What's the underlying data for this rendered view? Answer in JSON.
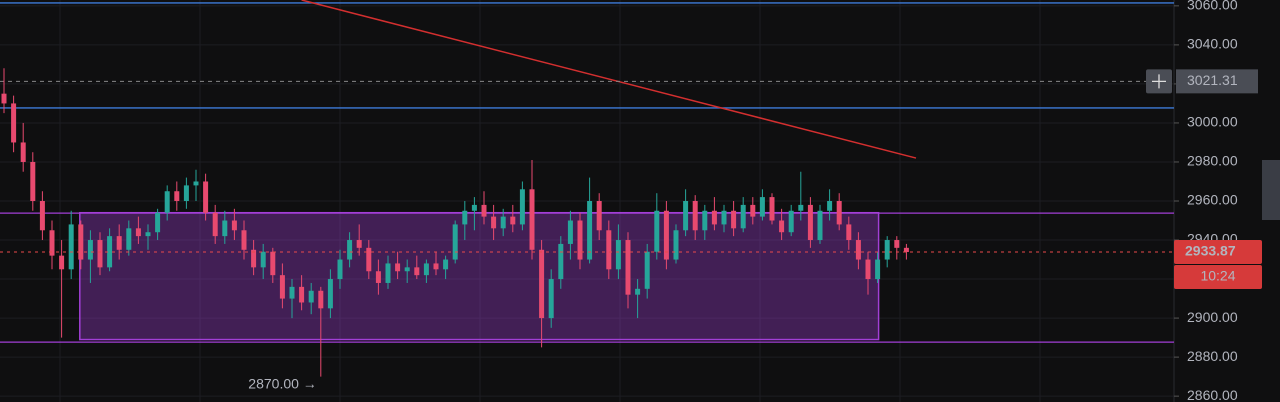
{
  "chart_data": {
    "type": "candlestick",
    "ylim": [
      2857,
      3063
    ],
    "yticks": [
      {
        "value": 3060,
        "label": "3060.00"
      },
      {
        "value": 3040,
        "label": "3040.00"
      },
      {
        "value": 3020,
        "label": "3020.00"
      },
      {
        "value": 3000,
        "label": "3000.00"
      },
      {
        "value": 2980,
        "label": "2980.00"
      },
      {
        "value": 2960,
        "label": "2960.00"
      },
      {
        "value": 2940,
        "label": "2940.00"
      },
      {
        "value": 2920,
        "label": "2920.00"
      },
      {
        "value": 2900,
        "label": "2900.00"
      },
      {
        "value": 2880,
        "label": "2880.00"
      },
      {
        "value": 2860,
        "label": "2860.00"
      }
    ],
    "grid": true,
    "up_color": "#26a69a",
    "down_color": "#e84a6f",
    "candles": [
      [
        3015,
        3028,
        3005,
        3010
      ],
      [
        3010,
        3014,
        2985,
        2990
      ],
      [
        2990,
        3000,
        2975,
        2980
      ],
      [
        2980,
        2985,
        2955,
        2960
      ],
      [
        2960,
        2965,
        2940,
        2945
      ],
      [
        2945,
        2950,
        2925,
        2932
      ],
      [
        2932,
        2940,
        2890,
        2925
      ],
      [
        2925,
        2955,
        2920,
        2948
      ],
      [
        2948,
        2950,
        2925,
        2930
      ],
      [
        2930,
        2945,
        2918,
        2940
      ],
      [
        2940,
        2944,
        2922,
        2926
      ],
      [
        2926,
        2946,
        2924,
        2942
      ],
      [
        2942,
        2948,
        2930,
        2935
      ],
      [
        2935,
        2950,
        2932,
        2946
      ],
      [
        2946,
        2952,
        2938,
        2942
      ],
      [
        2942,
        2948,
        2935,
        2944
      ],
      [
        2944,
        2956,
        2940,
        2954
      ],
      [
        2954,
        2968,
        2950,
        2965
      ],
      [
        2965,
        2970,
        2955,
        2960
      ],
      [
        2960,
        2972,
        2956,
        2968
      ],
      [
        2968,
        2976,
        2960,
        2970
      ],
      [
        2970,
        2974,
        2950,
        2954
      ],
      [
        2954,
        2958,
        2938,
        2942
      ],
      [
        2942,
        2955,
        2938,
        2950
      ],
      [
        2950,
        2956,
        2940,
        2945
      ],
      [
        2945,
        2950,
        2930,
        2935
      ],
      [
        2935,
        2940,
        2922,
        2926
      ],
      [
        2926,
        2938,
        2920,
        2934
      ],
      [
        2934,
        2936,
        2918,
        2922
      ],
      [
        2922,
        2928,
        2905,
        2910
      ],
      [
        2910,
        2920,
        2900,
        2916
      ],
      [
        2916,
        2922,
        2904,
        2908
      ],
      [
        2908,
        2918,
        2902,
        2914
      ],
      [
        2914,
        2916,
        2870,
        2905
      ],
      [
        2905,
        2925,
        2900,
        2920
      ],
      [
        2920,
        2935,
        2915,
        2930
      ],
      [
        2930,
        2944,
        2926,
        2940
      ],
      [
        2940,
        2948,
        2932,
        2936
      ],
      [
        2936,
        2940,
        2920,
        2924
      ],
      [
        2924,
        2930,
        2912,
        2918
      ],
      [
        2918,
        2932,
        2915,
        2928
      ],
      [
        2928,
        2934,
        2920,
        2924
      ],
      [
        2924,
        2930,
        2918,
        2926
      ],
      [
        2926,
        2932,
        2920,
        2922
      ],
      [
        2922,
        2930,
        2918,
        2928
      ],
      [
        2928,
        2934,
        2922,
        2925
      ],
      [
        2925,
        2932,
        2920,
        2930
      ],
      [
        2930,
        2950,
        2928,
        2948
      ],
      [
        2948,
        2960,
        2940,
        2955
      ],
      [
        2955,
        2962,
        2945,
        2958
      ],
      [
        2958,
        2965,
        2948,
        2952
      ],
      [
        2952,
        2958,
        2940,
        2946
      ],
      [
        2946,
        2956,
        2942,
        2952
      ],
      [
        2952,
        2958,
        2944,
        2948
      ],
      [
        2948,
        2970,
        2945,
        2966
      ],
      [
        2966,
        2981,
        2930,
        2935
      ],
      [
        2935,
        2940,
        2885,
        2900
      ],
      [
        2900,
        2925,
        2895,
        2920
      ],
      [
        2920,
        2942,
        2915,
        2938
      ],
      [
        2938,
        2955,
        2930,
        2950
      ],
      [
        2950,
        2954,
        2925,
        2930
      ],
      [
        2930,
        2972,
        2928,
        2960
      ],
      [
        2960,
        2964,
        2940,
        2945
      ],
      [
        2945,
        2950,
        2920,
        2925
      ],
      [
        2925,
        2948,
        2920,
        2940
      ],
      [
        2940,
        2944,
        2905,
        2912
      ],
      [
        2912,
        2920,
        2900,
        2915
      ],
      [
        2915,
        2938,
        2910,
        2934
      ],
      [
        2934,
        2964,
        2930,
        2955
      ],
      [
        2955,
        2960,
        2925,
        2930
      ],
      [
        2930,
        2948,
        2928,
        2945
      ],
      [
        2945,
        2966,
        2942,
        2960
      ],
      [
        2960,
        2963,
        2940,
        2945
      ],
      [
        2945,
        2958,
        2940,
        2955
      ],
      [
        2955,
        2962,
        2945,
        2948
      ],
      [
        2948,
        2958,
        2944,
        2955
      ],
      [
        2955,
        2960,
        2942,
        2946
      ],
      [
        2946,
        2962,
        2944,
        2958
      ],
      [
        2958,
        2962,
        2948,
        2952
      ],
      [
        2952,
        2966,
        2950,
        2962
      ],
      [
        2962,
        2964,
        2948,
        2950
      ],
      [
        2950,
        2956,
        2940,
        2944
      ],
      [
        2944,
        2958,
        2942,
        2955
      ],
      [
        2955,
        2975,
        2950,
        2958
      ],
      [
        2958,
        2962,
        2936,
        2940
      ],
      [
        2940,
        2958,
        2938,
        2955
      ],
      [
        2955,
        2966,
        2950,
        2960
      ],
      [
        2960,
        2964,
        2945,
        2948
      ],
      [
        2948,
        2952,
        2935,
        2940
      ],
      [
        2940,
        2944,
        2925,
        2930
      ],
      [
        2930,
        2934,
        2912,
        2920
      ],
      [
        2920,
        2934,
        2918,
        2930
      ],
      [
        2930,
        2942,
        2926,
        2940
      ],
      [
        2940,
        2942,
        2930,
        2936
      ],
      [
        2936,
        2938,
        2930,
        2933.87
      ]
    ],
    "hlines": [
      {
        "value": 3061.5,
        "color": "#3d7bd9"
      },
      {
        "value": 3007.7,
        "color": "#3d7bd9"
      },
      {
        "value": 2953.8,
        "color": "#a23fd6"
      },
      {
        "value": 2887.7,
        "color": "#a23fd6"
      }
    ],
    "box": {
      "top": 2954,
      "bottom": 2889,
      "from": 8,
      "to": 91,
      "color": "#a23fd6"
    },
    "trendline": {
      "from": [
        31,
        3063
      ],
      "to": [
        95,
        2982
      ],
      "color": "#d32f2f"
    },
    "crosshair": 3021.31,
    "last_price": 2933.87,
    "countdown": "10:24",
    "low_annotation": {
      "value": 2870,
      "label": "2870.00 →",
      "index": 33
    }
  }
}
